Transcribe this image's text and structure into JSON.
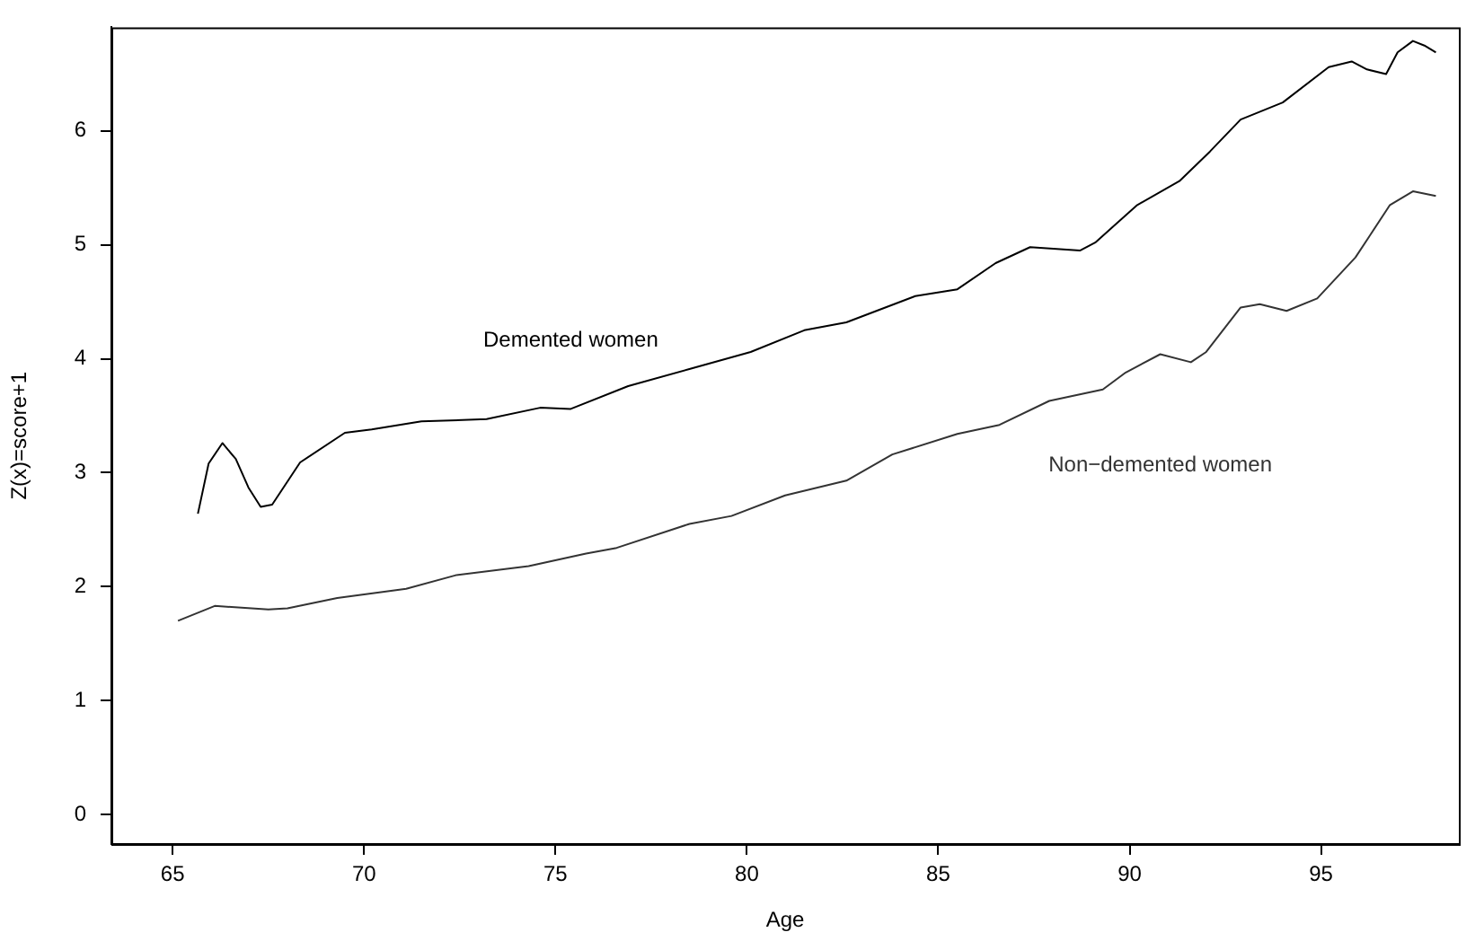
{
  "chart_data": {
    "type": "line",
    "xlabel": "Age",
    "ylabel": "Z(x)=score+1",
    "xlim": [
      63.4,
      98.6
    ],
    "ylim": [
      -0.26,
      6.91
    ],
    "xticks": [
      65,
      70,
      75,
      80,
      85,
      90,
      95
    ],
    "yticks": [
      0,
      1,
      2,
      3,
      4,
      5,
      6
    ],
    "grid": false,
    "legend": false,
    "marker": "none",
    "line_style": "solid",
    "series": [
      {
        "name": "Demented women",
        "color": "#000000",
        "x": [
          65.66,
          65.94,
          66.3,
          66.65,
          66.98,
          67.3,
          67.6,
          68.33,
          69.5,
          70.2,
          71.5,
          73.2,
          74.6,
          75.4,
          76.9,
          78.5,
          80.1,
          81.5,
          82.6,
          84.4,
          85.5,
          86.5,
          87.4,
          88.7,
          89.1,
          90.2,
          91.3,
          92.1,
          92.9,
          94.0,
          95.2,
          95.8,
          96.2,
          96.7,
          97.0,
          97.4,
          97.7,
          98.0
        ],
        "values": [
          2.64,
          3.08,
          3.26,
          3.12,
          2.87,
          2.7,
          2.72,
          3.09,
          3.35,
          3.38,
          3.45,
          3.47,
          3.57,
          3.56,
          3.76,
          3.91,
          4.06,
          4.25,
          4.32,
          4.55,
          4.61,
          4.84,
          4.98,
          4.95,
          5.02,
          5.35,
          5.56,
          5.82,
          6.1,
          6.25,
          6.56,
          6.61,
          6.54,
          6.5,
          6.69,
          6.79,
          6.75,
          6.69
        ]
      },
      {
        "name": "Non−demented women",
        "color": "#333333",
        "x": [
          65.14,
          66.1,
          67.5,
          68.0,
          69.3,
          71.1,
          72.4,
          74.3,
          75.8,
          76.6,
          78.5,
          79.6,
          81.0,
          82.6,
          83.8,
          85.5,
          86.6,
          87.9,
          89.3,
          89.9,
          90.8,
          91.6,
          92.0,
          92.9,
          93.4,
          94.1,
          94.9,
          95.9,
          96.8,
          97.4,
          98.0
        ],
        "values": [
          1.7,
          1.83,
          1.8,
          1.81,
          1.9,
          1.98,
          2.1,
          2.18,
          2.29,
          2.34,
          2.55,
          2.62,
          2.8,
          2.93,
          3.16,
          3.34,
          3.42,
          3.63,
          3.73,
          3.88,
          4.04,
          3.97,
          4.06,
          4.45,
          4.48,
          4.42,
          4.53,
          4.89,
          5.35,
          5.47,
          5.43
        ]
      }
    ]
  }
}
